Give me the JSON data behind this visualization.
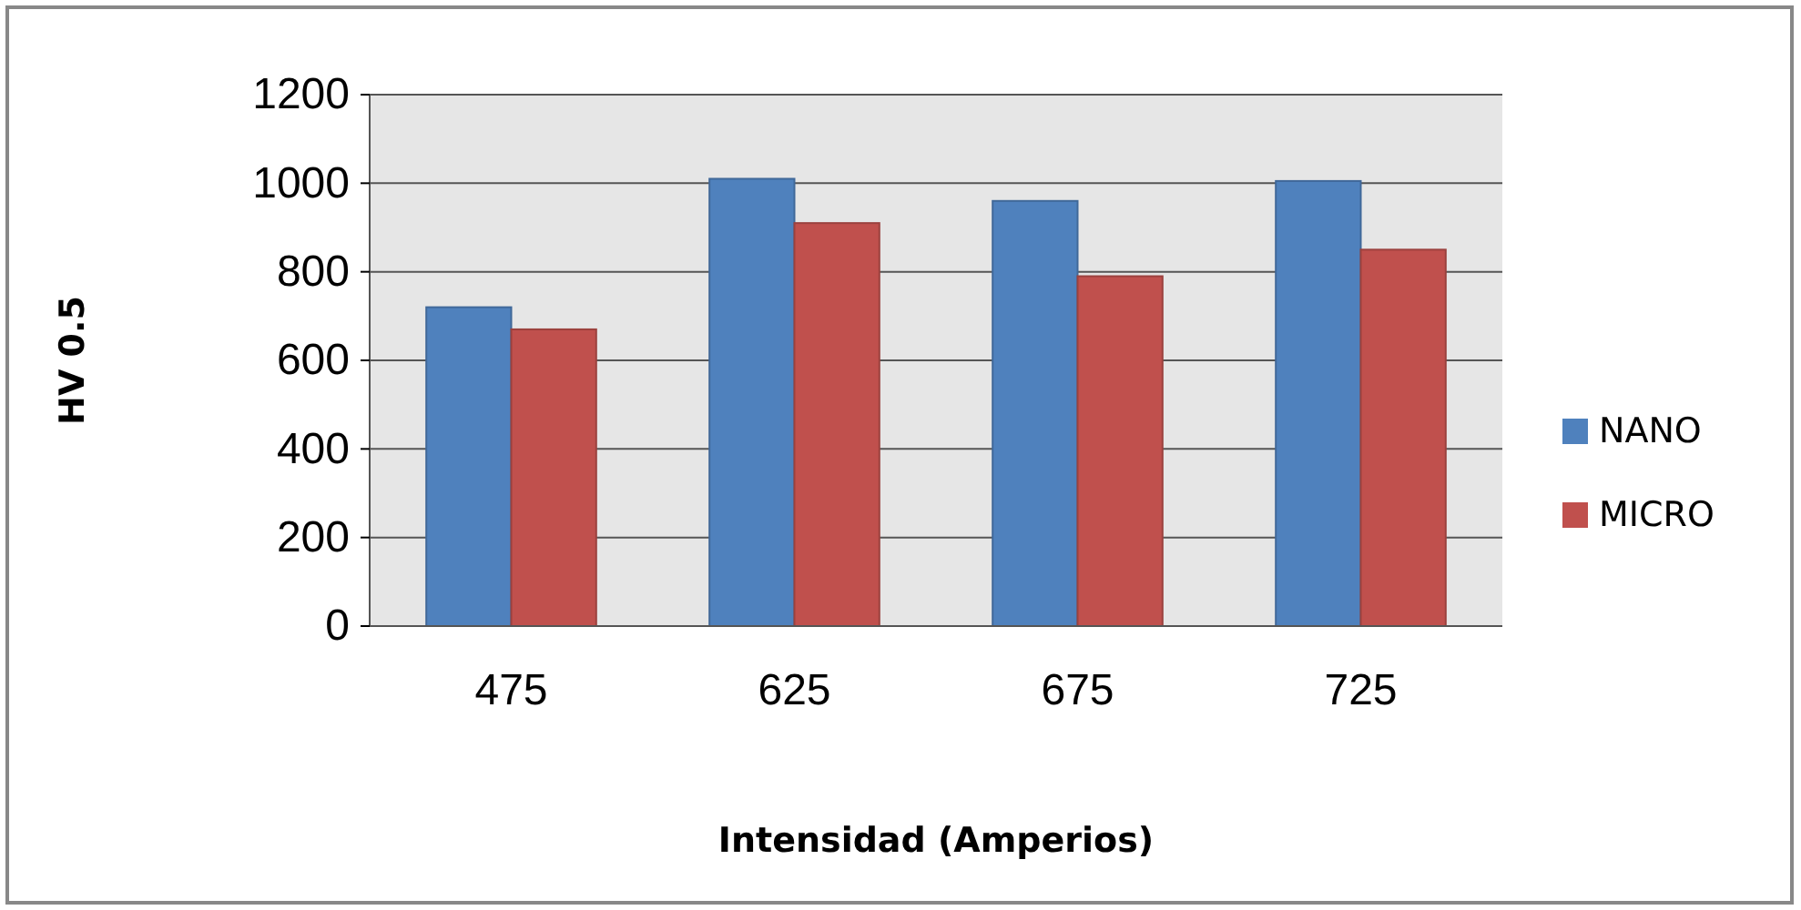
{
  "chart_data": {
    "type": "bar",
    "xlabel": "Intensidad (Amperios)",
    "ylabel": "HV 0.5",
    "categories": [
      "475",
      "625",
      "675",
      "725"
    ],
    "series": [
      {
        "name": "NANO",
        "color": "#4f81bd",
        "values": [
          720,
          1010,
          960,
          1005
        ]
      },
      {
        "name": "MICRO",
        "color": "#c0504d",
        "values": [
          670,
          910,
          790,
          850
        ]
      }
    ],
    "ylim": [
      0,
      1200
    ],
    "yticks": [
      0,
      200,
      400,
      600,
      800,
      1000,
      1200
    ],
    "grid": "y",
    "legend": "right"
  }
}
